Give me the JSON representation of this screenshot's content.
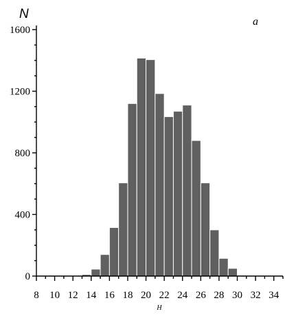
{
  "chart_data": {
    "type": "bar",
    "panel_label": "a",
    "xlabel": "H",
    "ylabel": "N",
    "xlim": [
      8,
      35
    ],
    "ylim": [
      0,
      1600
    ],
    "bin_width": 1,
    "x_ticks": [
      8,
      10,
      12,
      14,
      16,
      18,
      20,
      22,
      24,
      26,
      28,
      30,
      32,
      34
    ],
    "y_ticks": [
      0,
      400,
      800,
      1200,
      1600
    ],
    "grid": false,
    "bar_color": "#606060",
    "bins": [
      {
        "start": 13,
        "value": 10
      },
      {
        "start": 14,
        "value": 45
      },
      {
        "start": 15,
        "value": 140
      },
      {
        "start": 16,
        "value": 315
      },
      {
        "start": 17,
        "value": 605
      },
      {
        "start": 18,
        "value": 1120
      },
      {
        "start": 19,
        "value": 1415
      },
      {
        "start": 20,
        "value": 1405
      },
      {
        "start": 21,
        "value": 1185
      },
      {
        "start": 22,
        "value": 1035
      },
      {
        "start": 23,
        "value": 1070
      },
      {
        "start": 24,
        "value": 1110
      },
      {
        "start": 25,
        "value": 880
      },
      {
        "start": 26,
        "value": 605
      },
      {
        "start": 27,
        "value": 300
      },
      {
        "start": 28,
        "value": 115
      },
      {
        "start": 29,
        "value": 50
      },
      {
        "start": 30,
        "value": 5
      }
    ]
  }
}
